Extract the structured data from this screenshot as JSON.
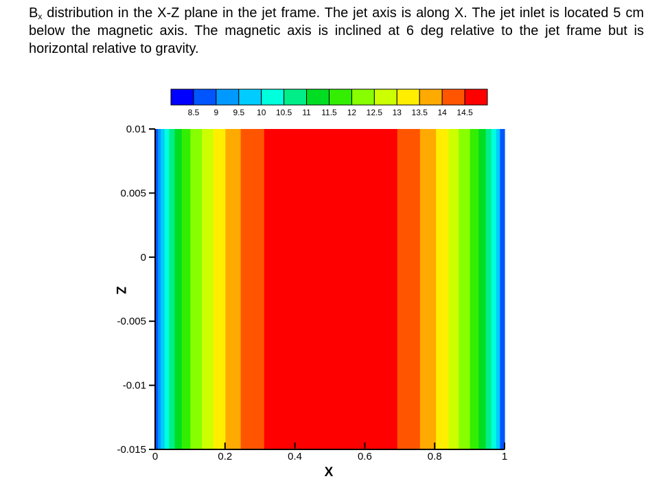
{
  "caption": {
    "symbol": "B",
    "subscript": "x",
    "text": " distribution in the X-Z plane in the jet frame. The jet axis is along X. The jet inlet is located 5 cm below the magnetic axis. The magnetic axis is inclined at 6 deg relative to the jet frame but is horizontal relative to gravity."
  },
  "chart_data": {
    "type": "heatmap",
    "xlabel": "X",
    "ylabel": "Z",
    "xlim": [
      0,
      1
    ],
    "ylim": [
      -0.015,
      0.01
    ],
    "xticks": [
      {
        "value": 0,
        "label": "0"
      },
      {
        "value": 0.2,
        "label": "0.2"
      },
      {
        "value": 0.4,
        "label": "0.4"
      },
      {
        "value": 0.6,
        "label": "0.6"
      },
      {
        "value": 0.8,
        "label": "0.8"
      },
      {
        "value": 1,
        "label": "1"
      }
    ],
    "yticks": [
      {
        "value": 0.01,
        "label": "0.01"
      },
      {
        "value": 0.005,
        "label": "0.005"
      },
      {
        "value": 0,
        "label": "0"
      },
      {
        "value": -0.005,
        "label": "-0.005"
      },
      {
        "value": -0.01,
        "label": "-0.01"
      },
      {
        "value": -0.015,
        "label": "-0.015"
      }
    ],
    "legend": {
      "position": "top",
      "levels": [
        8.5,
        9,
        9.5,
        10,
        10.5,
        11,
        11.5,
        12,
        12.5,
        13,
        13.5,
        14,
        14.5
      ],
      "labels": [
        "8.5",
        "9",
        "9.5",
        "10",
        "10.5",
        "11",
        "11.5",
        "12",
        "12.5",
        "13",
        "13.5",
        "14",
        "14.5"
      ],
      "colors": [
        "#0000ff",
        "#0055ff",
        "#0099ff",
        "#00ccff",
        "#00ffdd",
        "#00ee88",
        "#00dd22",
        "#33ee00",
        "#88ff00",
        "#ccff00",
        "#ffee00",
        "#ffaa00",
        "#ff5500",
        "#ff0000"
      ]
    },
    "bands": [
      {
        "x0": 0.0,
        "x1": 0.008,
        "level": 1
      },
      {
        "x0": 0.008,
        "x1": 0.016,
        "level": 2
      },
      {
        "x0": 0.016,
        "x1": 0.027,
        "level": 3
      },
      {
        "x0": 0.027,
        "x1": 0.04,
        "level": 4
      },
      {
        "x0": 0.04,
        "x1": 0.056,
        "level": 5
      },
      {
        "x0": 0.056,
        "x1": 0.076,
        "level": 6
      },
      {
        "x0": 0.076,
        "x1": 0.101,
        "level": 7
      },
      {
        "x0": 0.101,
        "x1": 0.134,
        "level": 8
      },
      {
        "x0": 0.134,
        "x1": 0.166,
        "level": 9
      },
      {
        "x0": 0.166,
        "x1": 0.201,
        "level": 10
      },
      {
        "x0": 0.201,
        "x1": 0.245,
        "level": 11
      },
      {
        "x0": 0.245,
        "x1": 0.312,
        "level": 12
      },
      {
        "x0": 0.312,
        "x1": 0.693,
        "level": 13
      },
      {
        "x0": 0.693,
        "x1": 0.758,
        "level": 12
      },
      {
        "x0": 0.758,
        "x1": 0.804,
        "level": 11
      },
      {
        "x0": 0.804,
        "x1": 0.84,
        "level": 10
      },
      {
        "x0": 0.84,
        "x1": 0.869,
        "level": 9
      },
      {
        "x0": 0.869,
        "x1": 0.901,
        "level": 8
      },
      {
        "x0": 0.901,
        "x1": 0.926,
        "level": 7
      },
      {
        "x0": 0.926,
        "x1": 0.946,
        "level": 6
      },
      {
        "x0": 0.946,
        "x1": 0.962,
        "level": 5
      },
      {
        "x0": 0.962,
        "x1": 0.976,
        "level": 4
      },
      {
        "x0": 0.976,
        "x1": 0.987,
        "level": 3
      },
      {
        "x0": 0.987,
        "x1": 1.0,
        "level": 1
      }
    ]
  }
}
